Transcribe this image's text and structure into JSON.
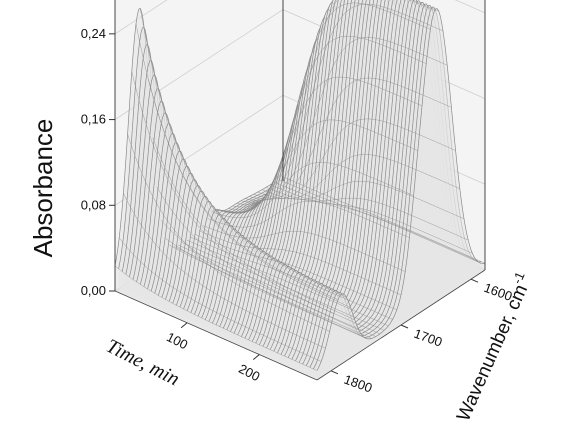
{
  "chart_data": {
    "type": "surface-3d",
    "ylabel": "Absorbance",
    "xlabel": "Time, min",
    "zlabel": "Wavenumber, cm",
    "zlabel_sup": "-1",
    "y_ticks": [
      "0,00",
      "0,08",
      "0,16",
      "0,24"
    ],
    "y_tick_values": [
      0.0,
      0.08,
      0.16,
      0.24
    ],
    "ylim": [
      0.0,
      0.28
    ],
    "x_ticks": [
      "100",
      "200"
    ],
    "x_tick_values": [
      100,
      200
    ],
    "xlim": [
      0,
      280
    ],
    "z_ticks": [
      "1600",
      "1700",
      "1800"
    ],
    "z_tick_values": [
      1600,
      1700,
      1800
    ],
    "zlim": [
      1580,
      1820
    ],
    "grid": true,
    "colors": {
      "mesh": "#8a8a8a",
      "surface": "#e6e6e6",
      "walls": "#f4f4f4",
      "floor": "#e9e9e9",
      "frame": "#333333"
    },
    "series": [
      {
        "peak_wavenumber": 1785,
        "peak_width": 22,
        "shape": "decay",
        "absorbance_max": 0.245,
        "absorbance_end": 0.06
      },
      {
        "peak_wavenumber": 1650,
        "peak_width": 32,
        "shape": "growth",
        "absorbance_max": 0.27,
        "rise_midpoint_min": 95
      },
      {
        "peak_wavenumber": 1680,
        "peak_width": 12,
        "shape": "constant",
        "absorbance_max": 0.01
      }
    ]
  }
}
